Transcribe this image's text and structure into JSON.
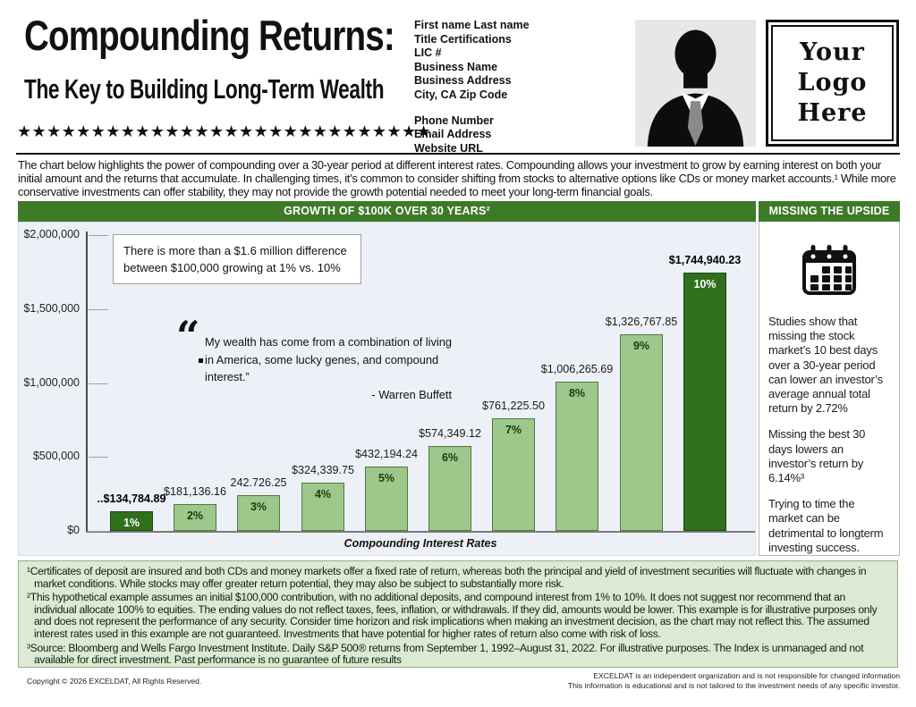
{
  "header": {
    "title": "Compounding Returns:",
    "subtitle": "The Key to Building Long-Term Wealth",
    "stars": "★★★★★★★★★★★★★★★★★★★★★★★★★★★★",
    "contact": {
      "lines_top": [
        "First name Last name",
        "Title Certifications",
        "LIC #",
        "Business Name",
        "Business Address",
        "City, CA Zip Code"
      ],
      "lines_bottom": [
        "Phone Number",
        "Email Address",
        "Website URL"
      ]
    },
    "logo_text": [
      "Your",
      "Logo",
      "Here"
    ]
  },
  "intro": {
    "text": "The chart below highlights the power of compounding over a 30-year period at different interest rates. Compounding allows your investment to grow by earning interest on both your initial amount and the returns that accumulate. In challenging times, it’s common to consider shifting from stocks to alternative options like CDs or money market accounts.¹ While more conservative investments can offer stability, they may not provide the growth potential needed to meet your long-term financial goals."
  },
  "chart_section": {
    "header": "GROWTH OF $100K OVER 30 YEARS²"
  },
  "callout": {
    "text": "There is more than a $1.6 million difference between $100,000 growing at 1% vs. 10%"
  },
  "quote": {
    "mark": "“",
    "line1": "My wealth has come from a combination of living",
    "line2": "in America, some lucky genes, and compound interest.”",
    "attribution": "- Warren Buffett"
  },
  "chart_data": {
    "type": "bar",
    "title": "GROWTH OF $100K OVER 30 YEARS²",
    "categories": [
      "1%",
      "2%",
      "3%",
      "4%",
      "5%",
      "6%",
      "7%",
      "8%",
      "9%",
      "10%"
    ],
    "values": [
      134784.89,
      181136.16,
      242726.25,
      324339.75,
      432194.24,
      574349.12,
      761225.5,
      1006265.69,
      1326767.85,
      1744940.23
    ],
    "value_labels": [
      "..$134,784.89",
      "$181,136.16",
      "242.726.25",
      "$324,339.75",
      "$432,194.24",
      "$574,349.12",
      "$761,225.50",
      "$1,006,265.69",
      "$1,326,767.85",
      "$1,744,940.23"
    ],
    "xlabel": "Compounding Interest Rates",
    "ylabel": "",
    "y_ticks": [
      "$2,000,000",
      "$1,500,000",
      "$1,000,000",
      "$500,000",
      "$0"
    ],
    "ylim": [
      0,
      2000000
    ],
    "grid": "ticks-only",
    "legend": "none",
    "bar_color_light": "#9cc88c",
    "bar_color_dark": "#30701c",
    "highlight_indices": [
      0,
      9
    ]
  },
  "sidebar": {
    "header": "MISSING THE UPSIDE",
    "icon": "calendar-icon",
    "paragraphs": [
      "Studies show that missing the stock market’s 10 best days over a 30-year period can lower an investor’s average annual total return by 2.72%",
      "Missing the best 30 days lowers an investor’s return by 6.14%³",
      "Trying to time the market can be detrimental to longterm investing success."
    ]
  },
  "footnotes": [
    "¹Certificates of deposit are insured and both CDs and money markets offer a fixed rate of return, whereas both the principal and yield of investment securities will fluctuate with changes in market conditions. While stocks may offer greater return potential, they may also be subject to substantially more risk.",
    "²This hypothetical example assumes an initial $100,000 contribution, with no additional deposits, and compound interest from 1% to 10%. It does not suggest nor recommend that an individual allocate 100% to equities. The ending values do not reflect taxes, fees, inflation, or withdrawals. If they did, amounts would be lower. This example is for illustrative purposes only and does not represent the performance of any security. Consider time horizon and risk implications when making an investment decision, as the chart may not reflect this. The assumed interest rates used in this example are not guaranteed. Investments that have potential for higher rates of return also come with risk of loss.",
    "³Source: Bloomberg and Wells Fargo Investment Institute. Daily S&P 500® returns from September 1, 1992–August 31, 2022. For illustrative purposes. The Index is unmanaged and not available for direct investment. Past performance is no guarantee of future results"
  ],
  "footer": {
    "copyright": "Copyright © 2026 EXCELDAT, All Rights Reserved.",
    "right_line1": "EXCELDAT is an independent organization and is not responsible for changed information",
    "right_line2": "This information is educational and is not tailored to the investment needs of any specific investor."
  }
}
